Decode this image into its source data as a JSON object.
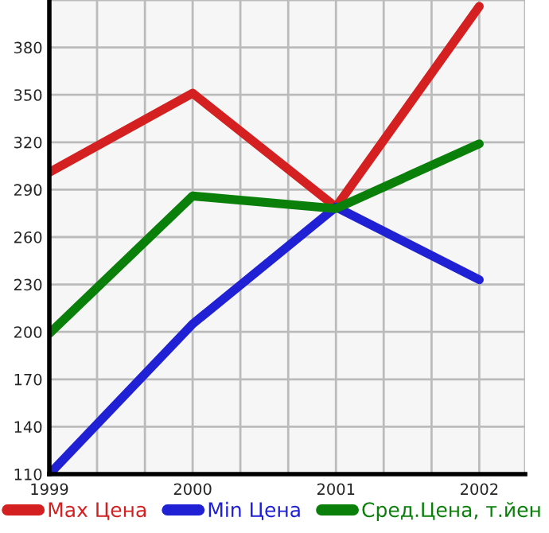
{
  "chart_data": {
    "type": "line",
    "x": [
      1999,
      2000,
      2001,
      2002
    ],
    "series": [
      {
        "name": "Max Цена",
        "color": "#d42020",
        "values": [
          301,
          351,
          279,
          406
        ]
      },
      {
        "name": "Min Цена",
        "color": "#2020d4",
        "values": [
          110,
          205,
          279,
          233
        ]
      },
      {
        "name": "Сред.Цена, т.йен",
        "color": "#0a800a",
        "values": [
          199,
          286,
          278,
          319
        ]
      }
    ],
    "xlim": [
      1999,
      2002.32
    ],
    "xticks": [
      1999,
      {
        "value": 1999.333,
        "label": null
      },
      {
        "value": 1999.667,
        "label": null
      },
      2000,
      {
        "value": 2000.333,
        "label": null
      },
      {
        "value": 2000.667,
        "label": null
      },
      2001,
      {
        "value": 2001.333,
        "label": null
      },
      {
        "value": 2001.667,
        "label": null
      },
      2002,
      {
        "value": 2002.32,
        "label": null
      }
    ],
    "ylim": [
      110,
      410
    ],
    "yticks": [
      110,
      140,
      170,
      200,
      230,
      260,
      290,
      320,
      350,
      380,
      {
        "value": 410,
        "label": null
      }
    ],
    "grid": true,
    "legend": "bottom",
    "marker": "none",
    "line_style": "solid"
  }
}
